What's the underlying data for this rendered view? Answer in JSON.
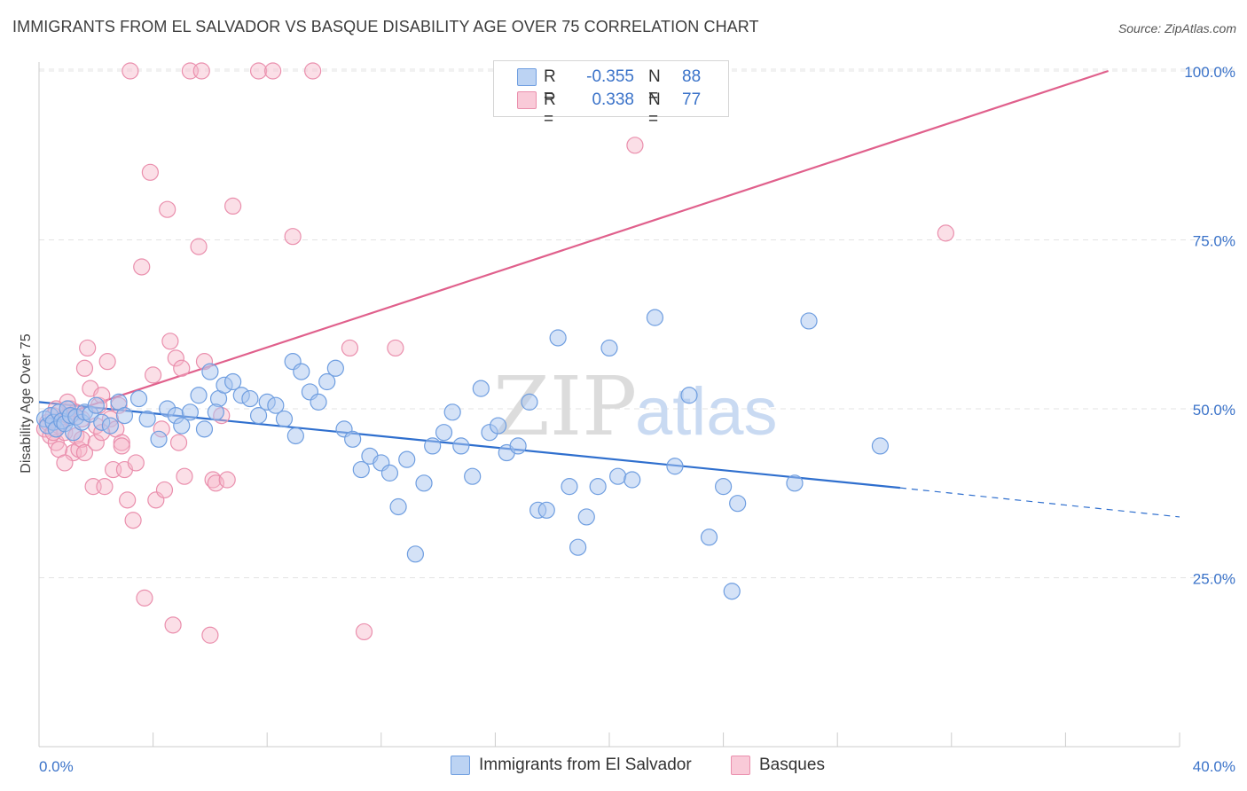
{
  "title": "IMMIGRANTS FROM EL SALVADOR VS BASQUE DISABILITY AGE OVER 75 CORRELATION CHART",
  "source": "Source: ZipAtlas.com",
  "watermark": {
    "zip": "ZIP",
    "atlas": "atlas"
  },
  "legend": {
    "series1": {
      "r_label": "R =",
      "r_value": "-0.355",
      "n_label": "N =",
      "n_value": "88"
    },
    "series2": {
      "r_label": "R =",
      "r_value": "0.338",
      "n_label": "N =",
      "n_value": "77"
    }
  },
  "colors": {
    "blue_fill": "#a9c6ef",
    "blue_stroke": "#6f9ee0",
    "blue_line": "#2f6fce",
    "pink_fill": "#f6b7ca",
    "pink_stroke": "#ea8fad",
    "pink_line": "#e0608c",
    "tick_text": "#3b73c9",
    "grid": "#e3e3e3"
  },
  "chart_data": {
    "type": "scatter",
    "title": "IMMIGRANTS FROM EL SALVADOR VS BASQUE DISABILITY AGE OVER 75 CORRELATION CHART",
    "xlabel": "",
    "ylabel": "Disability Age Over 75",
    "xlim": [
      0,
      40
    ],
    "ylim": [
      0,
      102
    ],
    "x_tick_labels": [
      "0.0%",
      "40.0%"
    ],
    "y_tick_labels": [
      "25.0%",
      "50.0%",
      "75.0%",
      "100.0%"
    ],
    "y_ticks": [
      25,
      50,
      75,
      100
    ],
    "grid": "horizontal dashed",
    "legend_position": "top-center",
    "series": [
      {
        "name": "Immigrants from El Salvador",
        "color": "#a9c6ef",
        "trend": {
          "x0": 0,
          "y0": 51.0,
          "x1": 30.2,
          "y1": 38.3,
          "dashed_to_x": 40,
          "dashed_to_y": 34.0
        },
        "points": [
          [
            0.2,
            48.5
          ],
          [
            0.3,
            47.5
          ],
          [
            0.4,
            49.0
          ],
          [
            0.5,
            48.0
          ],
          [
            0.6,
            47.0
          ],
          [
            0.7,
            49.5
          ],
          [
            0.8,
            48.2
          ],
          [
            0.9,
            47.8
          ],
          [
            1.0,
            50.0
          ],
          [
            1.1,
            49.0
          ],
          [
            1.2,
            46.5
          ],
          [
            1.3,
            48.8
          ],
          [
            1.5,
            48.0
          ],
          [
            1.6,
            49.5
          ],
          [
            1.8,
            49.2
          ],
          [
            2.0,
            50.5
          ],
          [
            2.2,
            48.0
          ],
          [
            2.5,
            47.5
          ],
          [
            2.8,
            51.0
          ],
          [
            3.0,
            49.0
          ],
          [
            3.5,
            51.5
          ],
          [
            3.8,
            48.5
          ],
          [
            4.2,
            45.5
          ],
          [
            4.5,
            50.0
          ],
          [
            4.8,
            49.0
          ],
          [
            5.0,
            47.5
          ],
          [
            5.3,
            49.5
          ],
          [
            5.6,
            52.0
          ],
          [
            5.8,
            47.0
          ],
          [
            6.0,
            55.5
          ],
          [
            6.3,
            51.5
          ],
          [
            6.5,
            53.5
          ],
          [
            6.8,
            54.0
          ],
          [
            7.1,
            52.0
          ],
          [
            7.4,
            51.5
          ],
          [
            7.7,
            49.0
          ],
          [
            8.0,
            51.0
          ],
          [
            8.3,
            50.5
          ],
          [
            8.6,
            48.5
          ],
          [
            8.9,
            57.0
          ],
          [
            9.2,
            55.5
          ],
          [
            9.5,
            52.5
          ],
          [
            9.8,
            51.0
          ],
          [
            10.1,
            54.0
          ],
          [
            10.4,
            56.0
          ],
          [
            10.7,
            47.0
          ],
          [
            11.0,
            45.5
          ],
          [
            11.3,
            41.0
          ],
          [
            11.6,
            43.0
          ],
          [
            12.0,
            42.0
          ],
          [
            12.3,
            40.5
          ],
          [
            12.6,
            35.5
          ],
          [
            12.9,
            42.5
          ],
          [
            13.2,
            28.5
          ],
          [
            13.5,
            39.0
          ],
          [
            13.8,
            44.5
          ],
          [
            14.2,
            46.5
          ],
          [
            14.5,
            49.5
          ],
          [
            14.8,
            44.5
          ],
          [
            15.2,
            40.0
          ],
          [
            15.5,
            53.0
          ],
          [
            15.8,
            46.5
          ],
          [
            16.1,
            47.5
          ],
          [
            16.4,
            43.5
          ],
          [
            16.8,
            44.5
          ],
          [
            17.2,
            51.0
          ],
          [
            17.5,
            35.0
          ],
          [
            17.8,
            35.0
          ],
          [
            18.2,
            60.5
          ],
          [
            18.6,
            38.5
          ],
          [
            18.9,
            29.5
          ],
          [
            19.2,
            34.0
          ],
          [
            19.6,
            38.5
          ],
          [
            20.0,
            59.0
          ],
          [
            20.3,
            40.0
          ],
          [
            20.8,
            39.5
          ],
          [
            21.6,
            63.5
          ],
          [
            22.3,
            41.5
          ],
          [
            22.8,
            52.0
          ],
          [
            23.5,
            31.0
          ],
          [
            24.0,
            38.5
          ],
          [
            24.3,
            23.0
          ],
          [
            24.5,
            36.0
          ],
          [
            26.5,
            39.0
          ],
          [
            27.0,
            63.0
          ],
          [
            29.5,
            44.5
          ],
          [
            9.0,
            46.0
          ],
          [
            6.2,
            49.5
          ]
        ]
      },
      {
        "name": "Basques",
        "color": "#f6b7ca",
        "trend": {
          "x0": 0,
          "y0": 48.0,
          "x1": 37.5,
          "y1": 100.0
        },
        "points": [
          [
            0.2,
            47.0
          ],
          [
            0.3,
            48.0
          ],
          [
            0.4,
            46.0
          ],
          [
            0.5,
            49.0
          ],
          [
            0.6,
            45.0
          ],
          [
            0.7,
            47.5
          ],
          [
            0.8,
            48.5
          ],
          [
            0.9,
            46.5
          ],
          [
            1.0,
            49.0
          ],
          [
            1.1,
            50.0
          ],
          [
            1.2,
            43.5
          ],
          [
            1.3,
            46.0
          ],
          [
            1.4,
            44.0
          ],
          [
            1.5,
            45.5
          ],
          [
            1.6,
            56.0
          ],
          [
            1.7,
            59.0
          ],
          [
            1.8,
            53.0
          ],
          [
            1.9,
            38.5
          ],
          [
            2.0,
            47.5
          ],
          [
            2.1,
            50.5
          ],
          [
            2.2,
            52.0
          ],
          [
            2.3,
            38.5
          ],
          [
            2.4,
            57.0
          ],
          [
            2.5,
            48.5
          ],
          [
            2.6,
            41.0
          ],
          [
            2.7,
            47.0
          ],
          [
            2.8,
            50.5
          ],
          [
            2.9,
            45.0
          ],
          [
            3.0,
            41.0
          ],
          [
            3.1,
            36.5
          ],
          [
            3.3,
            33.5
          ],
          [
            3.4,
            42.0
          ],
          [
            3.6,
            71.0
          ],
          [
            3.7,
            22.0
          ],
          [
            3.9,
            85.0
          ],
          [
            4.0,
            55.0
          ],
          [
            4.1,
            36.5
          ],
          [
            4.3,
            47.0
          ],
          [
            4.5,
            79.5
          ],
          [
            4.6,
            60.0
          ],
          [
            4.7,
            18.0
          ],
          [
            4.8,
            57.5
          ],
          [
            4.9,
            45.0
          ],
          [
            5.0,
            56.0
          ],
          [
            5.1,
            40.0
          ],
          [
            5.3,
            100.0
          ],
          [
            5.6,
            74.0
          ],
          [
            5.7,
            100.0
          ],
          [
            5.8,
            57.0
          ],
          [
            6.0,
            16.5
          ],
          [
            6.1,
            39.5
          ],
          [
            6.2,
            39.0
          ],
          [
            6.4,
            49.0
          ],
          [
            6.6,
            39.5
          ],
          [
            6.8,
            80.0
          ],
          [
            7.7,
            100.0
          ],
          [
            8.2,
            100.0
          ],
          [
            8.9,
            75.5
          ],
          [
            9.6,
            100.0
          ],
          [
            10.9,
            59.0
          ],
          [
            11.4,
            17.0
          ],
          [
            12.5,
            59.0
          ],
          [
            20.9,
            89.0
          ],
          [
            31.8,
            76.0
          ],
          [
            0.7,
            44.0
          ],
          [
            1.0,
            51.0
          ],
          [
            1.6,
            43.5
          ],
          [
            2.0,
            45.0
          ],
          [
            3.2,
            100.0
          ],
          [
            0.5,
            46.5
          ],
          [
            1.3,
            49.5
          ],
          [
            2.2,
            46.5
          ],
          [
            0.9,
            42.0
          ],
          [
            2.9,
            44.5
          ],
          [
            4.4,
            38.0
          ],
          [
            1.5,
            48.5
          ],
          [
            0.6,
            50.0
          ]
        ]
      }
    ]
  },
  "bottom_legend": {
    "item1": "Immigrants from El Salvador",
    "item2": "Basques"
  }
}
